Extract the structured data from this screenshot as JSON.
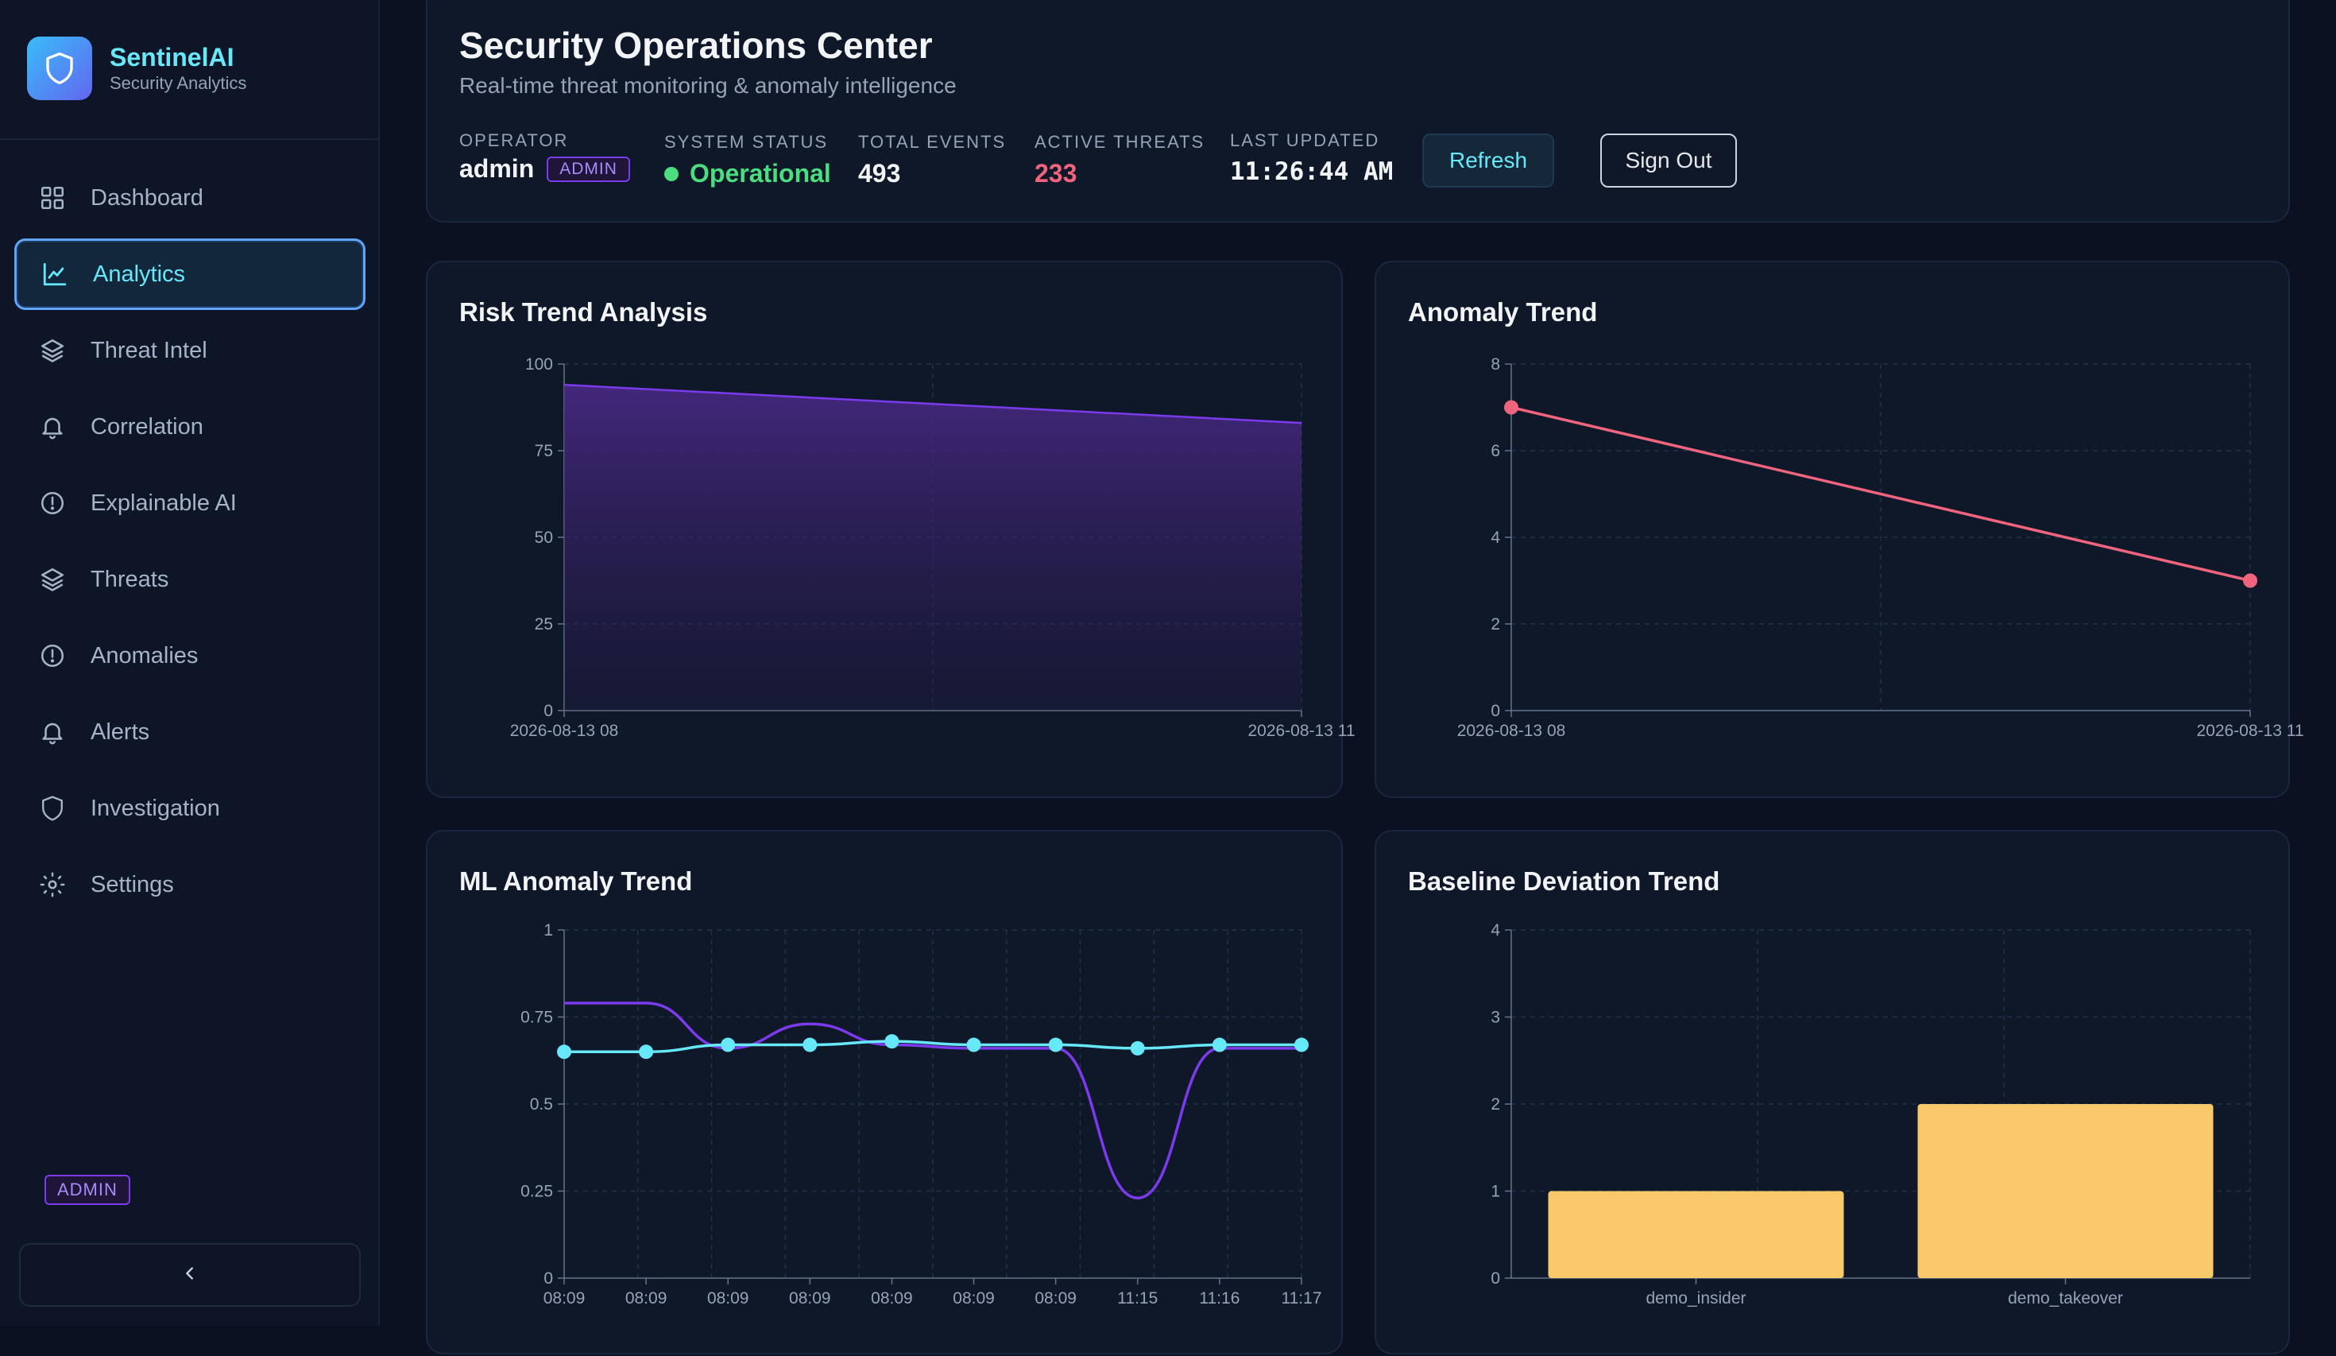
{
  "brand": {
    "name": "SentinelAI",
    "subtitle": "Security Analytics"
  },
  "sidebar": {
    "items": [
      {
        "label": "Dashboard",
        "icon": "grid-icon",
        "active": false
      },
      {
        "label": "Analytics",
        "icon": "line-chart-icon",
        "active": true
      },
      {
        "label": "Threat Intel",
        "icon": "layers-icon",
        "active": false
      },
      {
        "label": "Correlation",
        "icon": "bell-icon",
        "active": false
      },
      {
        "label": "Explainable AI",
        "icon": "alert-circle-icon",
        "active": false
      },
      {
        "label": "Threats",
        "icon": "layers-icon",
        "active": false
      },
      {
        "label": "Anomalies",
        "icon": "alert-circle-icon",
        "active": false
      },
      {
        "label": "Alerts",
        "icon": "bell-icon",
        "active": false
      },
      {
        "label": "Investigation",
        "icon": "shield-icon",
        "active": false
      },
      {
        "label": "Settings",
        "icon": "sun-gear-icon",
        "active": false
      }
    ],
    "role_badge": "ADMIN"
  },
  "header": {
    "title": "Security Operations Center",
    "subtitle": "Real-time threat monitoring & anomaly intelligence",
    "operator_label": "OPERATOR",
    "operator_value": "admin",
    "operator_role": "ADMIN",
    "status_label": "SYSTEM STATUS",
    "status_value": "Operational",
    "events_label": "TOTAL EVENTS",
    "events_value": "493",
    "threats_label": "ACTIVE THREATS",
    "threats_value": "233",
    "updated_label": "LAST UPDATED",
    "updated_value": "11:26:44 AM",
    "refresh_label": "Refresh",
    "signout_label": "Sign Out"
  },
  "colors": {
    "accent_cyan": "#67e8f9",
    "status_green": "#4ade80",
    "threat_red": "#f0647e",
    "purple": "#7c3aed",
    "bar_yellow": "#f8c96b"
  },
  "cards": {
    "risk": {
      "title": "Risk Trend Analysis"
    },
    "anomaly": {
      "title": "Anomaly Trend"
    },
    "ml": {
      "title": "ML Anomaly Trend"
    },
    "baseline": {
      "title": "Baseline Deviation Trend"
    }
  },
  "chart_data": [
    {
      "type": "area",
      "categories": [
        "2026-08-13 08",
        "2026-08-13 11"
      ],
      "values": [
        94,
        83
      ],
      "ylim": [
        0,
        100
      ],
      "yticks": [
        "0",
        "25",
        "50",
        "75",
        "100"
      ],
      "grid": true
    },
    {
      "type": "line",
      "categories": [
        "2026-08-13 08",
        "2026-08-13 11"
      ],
      "values": [
        7,
        3
      ],
      "ylim": [
        0,
        8
      ],
      "yticks": [
        "0",
        "2",
        "4",
        "6",
        "8"
      ],
      "grid": true
    },
    {
      "type": "line",
      "categories": [
        "08:09",
        "08:09",
        "08:09",
        "08:09",
        "08:09",
        "08:09",
        "08:09",
        "11:15",
        "11:16",
        "11:17"
      ],
      "series": [
        {
          "values": [
            0.79,
            0.79,
            0.66,
            0.73,
            0.67,
            0.66,
            0.66,
            0.23,
            0.66,
            0.66
          ],
          "color": "#7c3aed",
          "markers": false
        },
        {
          "values": [
            0.65,
            0.65,
            0.67,
            0.67,
            0.68,
            0.67,
            0.67,
            0.66,
            0.67,
            0.67
          ],
          "color": "#67e8f9",
          "markers": true
        }
      ],
      "ylim": [
        0,
        1
      ],
      "yticks": [
        "0",
        "0.25",
        "0.5",
        "0.75",
        "1"
      ],
      "grid": true
    },
    {
      "type": "bar",
      "categories": [
        "demo_insider",
        "demo_takeover"
      ],
      "values": [
        1,
        2
      ],
      "ylim": [
        0,
        4
      ],
      "yticks": [
        "0",
        "1",
        "2",
        "3",
        "4"
      ],
      "grid": true
    }
  ]
}
